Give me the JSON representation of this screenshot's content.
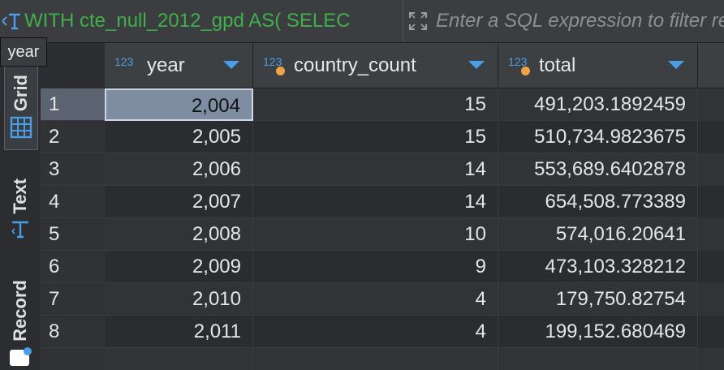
{
  "filter_bar": {
    "query_text": "WITH cte_null_2012_gpd AS( SELEC",
    "placeholder": "Enter a SQL expression to filter results (use Ctrl+Space)"
  },
  "side_tabs": {
    "grid_label": "Grid",
    "text_label": "Text",
    "record_label": "Record"
  },
  "tooltip": {
    "text": "year"
  },
  "columns": [
    {
      "type": "123",
      "name": "year"
    },
    {
      "type": "123",
      "name": "country_count"
    },
    {
      "type": "123",
      "name": "total"
    }
  ],
  "rows": [
    {
      "n": "1",
      "year": "2,004",
      "country_count": "15",
      "total": "491,203.1892459"
    },
    {
      "n": "2",
      "year": "2,005",
      "country_count": "15",
      "total": "510,734.9823675"
    },
    {
      "n": "3",
      "year": "2,006",
      "country_count": "14",
      "total": "553,689.6402878"
    },
    {
      "n": "4",
      "year": "2,007",
      "country_count": "14",
      "total": "654,508.773389"
    },
    {
      "n": "5",
      "year": "2,008",
      "country_count": "10",
      "total": "574,016.20641"
    },
    {
      "n": "6",
      "year": "2,009",
      "country_count": "9",
      "total": "473,103.328212"
    },
    {
      "n": "7",
      "year": "2,010",
      "country_count": "4",
      "total": "179,750.82754"
    },
    {
      "n": "8",
      "year": "2,011",
      "country_count": "4",
      "total": "199,152.680469"
    }
  ],
  "colors": {
    "sql_text": "#3fb04a",
    "type_icon": "#4a9ee8",
    "key_dot": "#f0a346",
    "selected_cell": "#7e8da1"
  }
}
